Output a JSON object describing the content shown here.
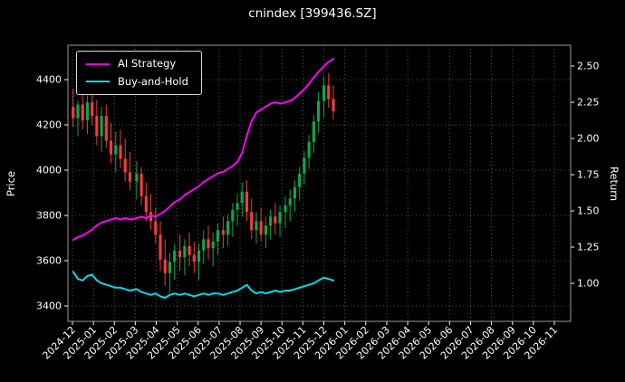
{
  "chart_data": {
    "type": "candlestick+line",
    "title": "cnindex [399436.SZ]",
    "layout": {
      "grid": true,
      "grid_style": "dotted",
      "legend_position": "upper-left",
      "background": "#000000"
    },
    "axes": {
      "left": {
        "label": "Price",
        "ticks": [
          3400,
          3600,
          3800,
          4000,
          4200,
          4400
        ],
        "min": 3332,
        "max": 4552
      },
      "right": {
        "label": "Return",
        "ticks": [
          1.0,
          1.25,
          1.5,
          1.75,
          2.0,
          2.25,
          2.5
        ],
        "min": 0.76,
        "max": 2.64
      },
      "x": {
        "label_rotation": 45,
        "ticks": [
          "2024-12",
          "2025-01",
          "2025-02",
          "2025-03",
          "2025-04",
          "2025-05",
          "2025-06",
          "2025-07",
          "2025-08",
          "2025-09",
          "2025-10",
          "2025-11",
          "2025-12",
          "2026-01",
          "2026-02",
          "2026-03",
          "2026-04",
          "2026-05",
          "2026-06",
          "2026-07",
          "2026-08",
          "2026-09",
          "2026-10",
          "2026-11"
        ]
      }
    },
    "legend": [
      {
        "label": "AI Strategy",
        "color": "#ff00ff"
      },
      {
        "label": "Buy-and-Hold",
        "color": "#00dde4"
      }
    ],
    "colors": {
      "up": "#10a34e",
      "down": "#ef3d3d",
      "text": "#ffffff",
      "grid": "#ffffff"
    },
    "candles": [
      [
        "2024-12-02",
        4280,
        4360,
        4190,
        4230
      ],
      [
        "2024-12-09",
        4230,
        4310,
        4150,
        4290
      ],
      [
        "2024-12-16",
        4290,
        4340,
        4180,
        4220
      ],
      [
        "2024-12-23",
        4220,
        4330,
        4160,
        4300
      ],
      [
        "2024-12-30",
        4300,
        4350,
        4200,
        4240
      ],
      [
        "2025-01-06",
        4240,
        4310,
        4110,
        4150
      ],
      [
        "2025-01-13",
        4150,
        4280,
        4080,
        4240
      ],
      [
        "2025-01-20",
        4240,
        4290,
        4100,
        4130
      ],
      [
        "2025-01-27",
        4130,
        4210,
        4030,
        4070
      ],
      [
        "2025-02-03",
        4070,
        4170,
        3990,
        4110
      ],
      [
        "2025-02-10",
        4110,
        4180,
        4010,
        4050
      ],
      [
        "2025-02-17",
        4050,
        4140,
        3950,
        3990
      ],
      [
        "2025-02-24",
        3990,
        4080,
        3910,
        3950
      ],
      [
        "2025-03-03",
        3950,
        4040,
        3870,
        3985
      ],
      [
        "2025-03-10",
        3985,
        4015,
        3845,
        3885
      ],
      [
        "2025-03-17",
        3885,
        3945,
        3775,
        3815
      ],
      [
        "2025-03-24",
        3815,
        3895,
        3735,
        3775
      ],
      [
        "2025-03-31",
        3775,
        3835,
        3675,
        3715
      ],
      [
        "2025-04-07",
        3715,
        3775,
        3555,
        3605
      ],
      [
        "2025-04-14",
        3605,
        3695,
        3490,
        3545
      ],
      [
        "2025-04-21",
        3545,
        3635,
        3460,
        3595
      ],
      [
        "2025-04-28",
        3595,
        3675,
        3515,
        3645
      ],
      [
        "2025-05-05",
        3645,
        3715,
        3555,
        3615
      ],
      [
        "2025-05-12",
        3615,
        3695,
        3535,
        3665
      ],
      [
        "2025-05-19",
        3665,
        3725,
        3575,
        3625
      ],
      [
        "2025-05-26",
        3625,
        3685,
        3545,
        3595
      ],
      [
        "2025-06-02",
        3595,
        3675,
        3515,
        3645
      ],
      [
        "2025-06-09",
        3645,
        3735,
        3585,
        3695
      ],
      [
        "2025-06-16",
        3695,
        3755,
        3605,
        3655
      ],
      [
        "2025-06-23",
        3655,
        3725,
        3575,
        3685
      ],
      [
        "2025-06-30",
        3685,
        3765,
        3625,
        3735
      ],
      [
        "2025-07-07",
        3735,
        3795,
        3655,
        3715
      ],
      [
        "2025-07-14",
        3715,
        3805,
        3665,
        3775
      ],
      [
        "2025-07-21",
        3775,
        3855,
        3705,
        3825
      ],
      [
        "2025-07-28",
        3825,
        3895,
        3755,
        3855
      ],
      [
        "2025-08-04",
        3855,
        3945,
        3795,
        3905
      ],
      [
        "2025-08-11",
        3905,
        3955,
        3775,
        3815
      ],
      [
        "2025-08-18",
        3815,
        3875,
        3695,
        3735
      ],
      [
        "2025-08-25",
        3735,
        3815,
        3675,
        3775
      ],
      [
        "2025-09-01",
        3775,
        3835,
        3685,
        3715
      ],
      [
        "2025-09-08",
        3715,
        3795,
        3655,
        3755
      ],
      [
        "2025-09-15",
        3755,
        3825,
        3695,
        3795
      ],
      [
        "2025-09-22",
        3795,
        3855,
        3715,
        3765
      ],
      [
        "2025-09-29",
        3765,
        3845,
        3705,
        3815
      ],
      [
        "2025-10-06",
        3815,
        3885,
        3745,
        3845
      ],
      [
        "2025-10-13",
        3845,
        3915,
        3775,
        3875
      ],
      [
        "2025-10-20",
        3875,
        3955,
        3815,
        3925
      ],
      [
        "2025-10-27",
        3925,
        4015,
        3865,
        3985
      ],
      [
        "2025-11-03",
        3985,
        4085,
        3935,
        4055
      ],
      [
        "2025-11-10",
        4055,
        4155,
        4005,
        4125
      ],
      [
        "2025-11-17",
        4125,
        4245,
        4075,
        4215
      ],
      [
        "2025-11-24",
        4215,
        4345,
        4165,
        4305
      ],
      [
        "2025-12-01",
        4305,
        4415,
        4235,
        4375
      ],
      [
        "2025-12-08",
        4375,
        4430,
        4275,
        4315
      ],
      [
        "2025-12-15",
        4315,
        4375,
        4225,
        4260
      ]
    ],
    "series": [
      {
        "name": "AI Strategy",
        "axis": "right",
        "color": "#ff00ff",
        "values": [
          1.3,
          1.32,
          1.33,
          1.35,
          1.37,
          1.4,
          1.42,
          1.43,
          1.44,
          1.45,
          1.44,
          1.45,
          1.44,
          1.45,
          1.46,
          1.45,
          1.47,
          1.46,
          1.48,
          1.5,
          1.53,
          1.56,
          1.58,
          1.61,
          1.63,
          1.65,
          1.67,
          1.7,
          1.72,
          1.74,
          1.76,
          1.77,
          1.79,
          1.81,
          1.84,
          1.9,
          2.02,
          2.12,
          2.18,
          2.2,
          2.22,
          2.24,
          2.25,
          2.24,
          2.25,
          2.26,
          2.28,
          2.31,
          2.34,
          2.38,
          2.42,
          2.46,
          2.5,
          2.53,
          2.55
        ]
      },
      {
        "name": "Buy-and-Hold",
        "axis": "right",
        "color": "#00dde4",
        "values": [
          1.08,
          1.03,
          1.02,
          1.05,
          1.06,
          1.02,
          1.0,
          0.99,
          0.98,
          0.97,
          0.97,
          0.96,
          0.95,
          0.96,
          0.94,
          0.93,
          0.92,
          0.93,
          0.91,
          0.9,
          0.92,
          0.93,
          0.92,
          0.93,
          0.92,
          0.91,
          0.92,
          0.93,
          0.92,
          0.93,
          0.93,
          0.92,
          0.93,
          0.94,
          0.95,
          0.97,
          0.99,
          0.95,
          0.93,
          0.94,
          0.93,
          0.94,
          0.95,
          0.94,
          0.95,
          0.95,
          0.96,
          0.97,
          0.98,
          0.99,
          1.0,
          1.02,
          1.04,
          1.03,
          1.02
        ]
      }
    ]
  }
}
